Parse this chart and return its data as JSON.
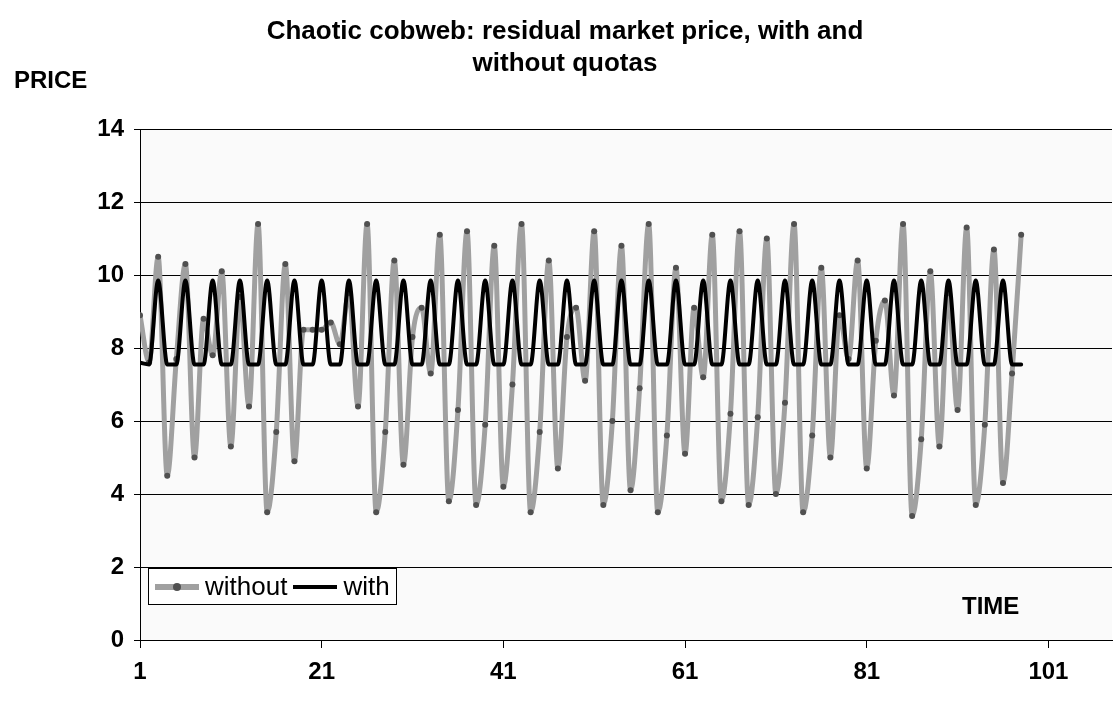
{
  "chart_data": {
    "type": "line",
    "title": "Chaotic cobweb: residual market price, with and without quotas",
    "ylabel": "PRICE",
    "xlabel": "TIME",
    "x": [
      1,
      2,
      3,
      4,
      5,
      6,
      7,
      8,
      9,
      10,
      11,
      12,
      13,
      14,
      15,
      16,
      17,
      18,
      19,
      20,
      21,
      22,
      23,
      24,
      25,
      26,
      27,
      28,
      29,
      30,
      31,
      32,
      33,
      34,
      35,
      36,
      37,
      38,
      39,
      40,
      41,
      42,
      43,
      44,
      45,
      46,
      47,
      48,
      49,
      50,
      51,
      52,
      53,
      54,
      55,
      56,
      57,
      58,
      59,
      60,
      61,
      62,
      63,
      64,
      65,
      66,
      67,
      68,
      69,
      70,
      71,
      72,
      73,
      74,
      75,
      76,
      77,
      78,
      79,
      80,
      81,
      82,
      83,
      84,
      85,
      86,
      87,
      88,
      89,
      90,
      91,
      92,
      93,
      94,
      95,
      96,
      97,
      98
    ],
    "series": [
      {
        "name": "without",
        "color": "#a0a0a0",
        "marker": "circle",
        "values": [
          8.9,
          7.6,
          10.5,
          4.5,
          7.7,
          10.3,
          5.0,
          8.8,
          7.8,
          10.1,
          5.3,
          9.4,
          6.4,
          11.4,
          3.5,
          5.7,
          10.3,
          4.9,
          8.5,
          8.5,
          8.5,
          8.7,
          8.1,
          9.5,
          6.4,
          11.4,
          3.5,
          5.7,
          10.4,
          4.8,
          8.3,
          9.1,
          7.3,
          11.1,
          3.8,
          6.3,
          11.2,
          3.7,
          5.9,
          10.8,
          4.2,
          7.0,
          11.4,
          3.5,
          5.7,
          10.4,
          4.7,
          8.3,
          9.1,
          7.1,
          11.2,
          3.7,
          6.0,
          10.8,
          4.1,
          6.9,
          11.4,
          3.5,
          5.6,
          10.2,
          5.1,
          9.1,
          7.2,
          11.1,
          3.8,
          6.2,
          11.2,
          3.7,
          6.1,
          11.0,
          4.0,
          6.5,
          11.4,
          3.5,
          5.6,
          10.2,
          5.0,
          8.9,
          7.7,
          10.4,
          4.7,
          8.2,
          9.3,
          6.7,
          11.4,
          3.4,
          5.5,
          10.1,
          5.3,
          9.5,
          6.3,
          11.3,
          3.7,
          5.9,
          10.7,
          4.3,
          7.3,
          11.1
        ]
      },
      {
        "name": "with",
        "color": "#000000",
        "marker": "none",
        "values": [
          7.6,
          7.55,
          9.85,
          7.55,
          7.55,
          9.85,
          7.55,
          7.55,
          9.85,
          7.55,
          7.55,
          9.85,
          7.55,
          7.55,
          9.85,
          7.55,
          7.55,
          9.85,
          7.55,
          7.55,
          9.85,
          7.55,
          7.55,
          9.85,
          7.55,
          7.55,
          9.85,
          7.55,
          7.55,
          9.85,
          7.55,
          7.55,
          9.85,
          7.55,
          7.55,
          9.85,
          7.55,
          7.55,
          9.85,
          7.55,
          7.55,
          9.85,
          7.55,
          7.55,
          9.85,
          7.55,
          7.55,
          9.85,
          7.55,
          7.55,
          9.85,
          7.55,
          7.55,
          9.85,
          7.55,
          7.55,
          9.85,
          7.55,
          7.55,
          9.85,
          7.55,
          7.55,
          9.85,
          7.55,
          7.55,
          9.85,
          7.55,
          7.55,
          9.85,
          7.55,
          7.55,
          9.85,
          7.55,
          7.55,
          9.85,
          7.55,
          7.55,
          9.85,
          7.55,
          7.55,
          9.85,
          7.55,
          7.55,
          9.85,
          7.55,
          7.55,
          9.85,
          7.55,
          7.55,
          9.85,
          7.55,
          7.55,
          9.85,
          7.55,
          7.55,
          9.85,
          7.55,
          7.55
        ]
      }
    ],
    "xlim": [
      1,
      108
    ],
    "xticks": [
      1,
      21,
      41,
      61,
      81,
      101
    ],
    "ylim": [
      0,
      14
    ],
    "yticks": [
      0,
      2,
      4,
      6,
      8,
      10,
      12,
      14
    ],
    "grid": "y",
    "legend": "bottom left",
    "line_style": "solid"
  }
}
